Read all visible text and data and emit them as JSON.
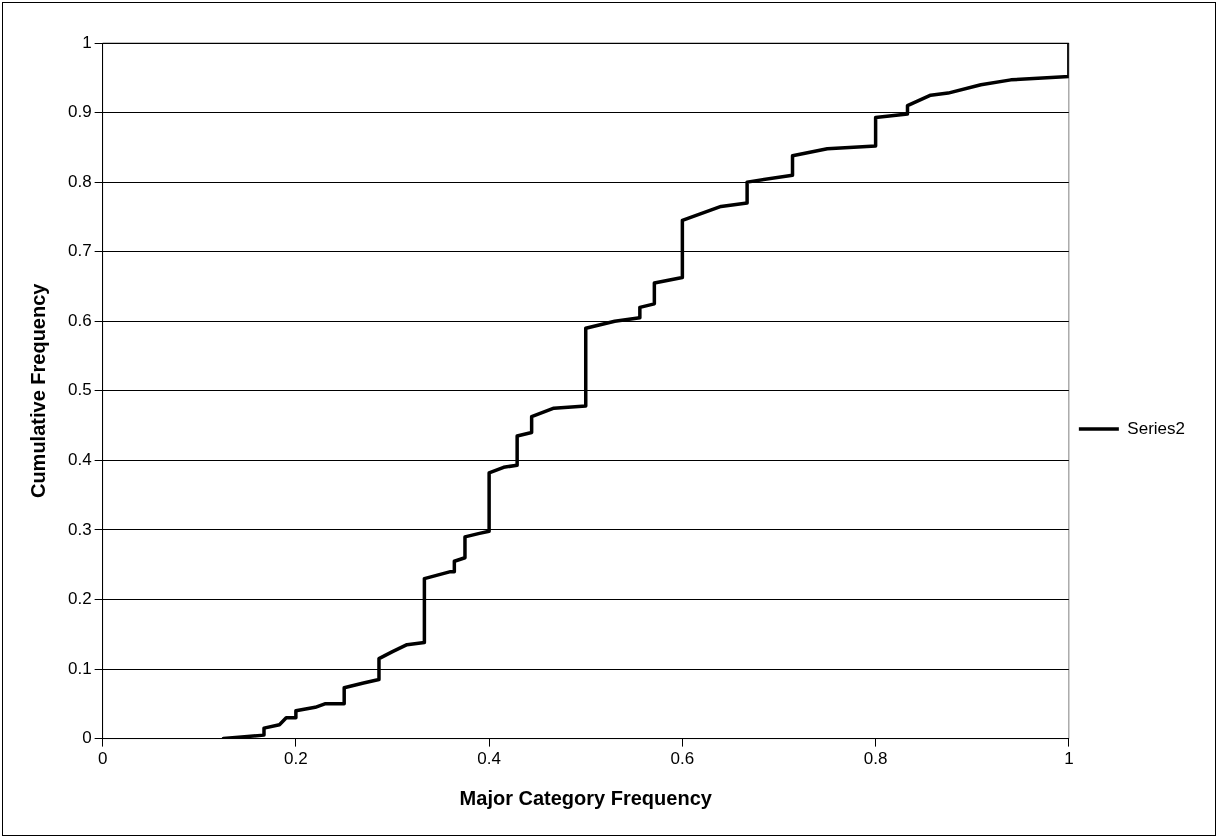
{
  "chart_data": {
    "type": "line",
    "xlabel": "Major Category Frequency",
    "ylabel": "Cumulative Frequency",
    "xlim": [
      0,
      1
    ],
    "xticks": [
      0,
      0.2,
      0.4,
      0.6,
      0.8,
      1
    ],
    "ylim": [
      0,
      1
    ],
    "yticks": [
      0,
      0.1,
      0.2,
      0.3,
      0.4,
      0.5,
      0.6,
      0.7,
      0.8,
      0.9,
      1
    ],
    "grid": "y",
    "legend": "right",
    "marker": "none",
    "line_style": "solid",
    "series": [
      {
        "name": "Series2",
        "color": "#000000",
        "x": [
          0.125,
          0.15,
          0.167,
          0.167,
          0.183,
          0.19,
          0.2,
          0.2,
          0.22,
          0.23,
          0.25,
          0.25,
          0.27,
          0.286,
          0.286,
          0.3,
          0.315,
          0.333,
          0.333,
          0.36,
          0.364,
          0.364,
          0.375,
          0.375,
          0.39,
          0.4,
          0.4,
          0.415,
          0.429,
          0.429,
          0.444,
          0.444,
          0.467,
          0.5,
          0.5,
          0.53,
          0.556,
          0.556,
          0.571,
          0.571,
          0.6,
          0.6,
          0.64,
          0.667,
          0.667,
          0.714,
          0.714,
          0.75,
          0.8,
          0.8,
          0.833,
          0.833,
          0.857,
          0.875,
          0.909,
          0.94,
          1,
          1
        ],
        "values": [
          0,
          0.003,
          0.005,
          0.015,
          0.02,
          0.03,
          0.03,
          0.04,
          0.045,
          0.05,
          0.05,
          0.073,
          0.08,
          0.085,
          0.115,
          0.125,
          0.135,
          0.138,
          0.23,
          0.24,
          0.24,
          0.255,
          0.26,
          0.29,
          0.295,
          0.298,
          0.382,
          0.39,
          0.393,
          0.435,
          0.44,
          0.463,
          0.475,
          0.478,
          0.59,
          0.6,
          0.605,
          0.62,
          0.625,
          0.655,
          0.663,
          0.745,
          0.765,
          0.77,
          0.8,
          0.81,
          0.838,
          0.848,
          0.852,
          0.893,
          0.898,
          0.91,
          0.925,
          0.928,
          0.94,
          0.947,
          0.952,
          1
        ]
      }
    ]
  }
}
